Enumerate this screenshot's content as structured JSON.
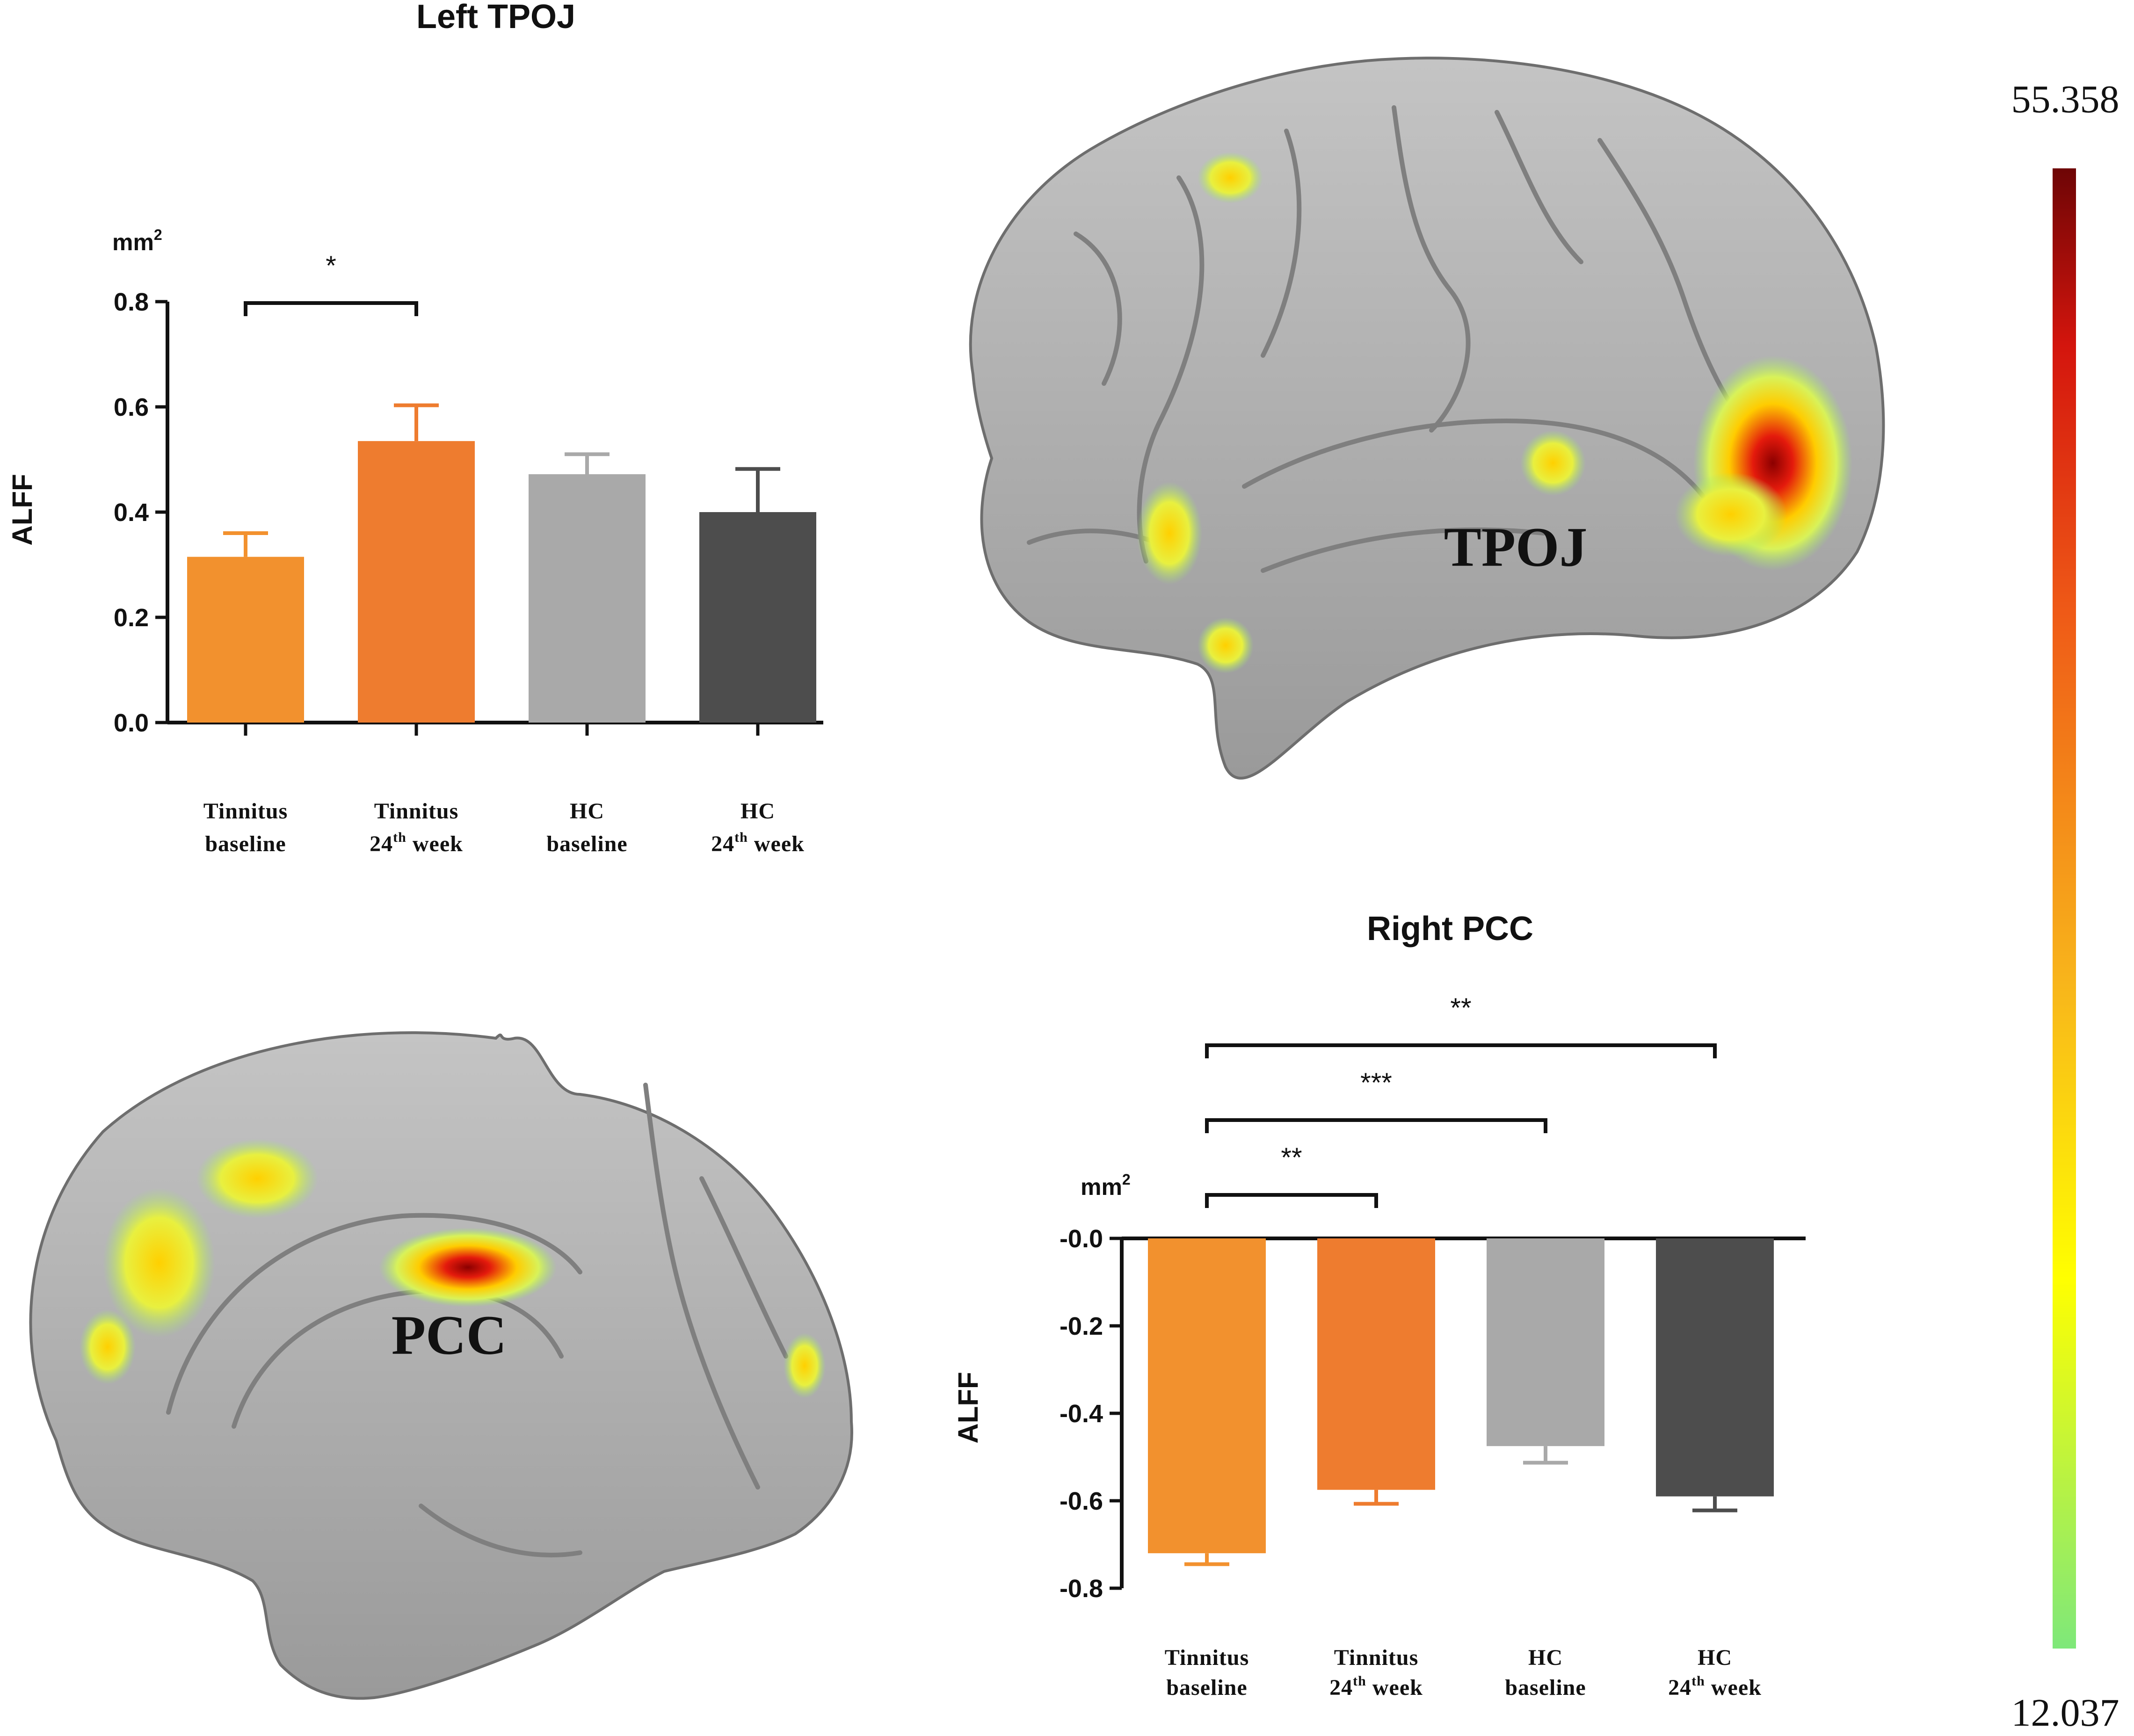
{
  "chart_data": [
    {
      "type": "bar",
      "title": "Left  TPOJ",
      "ylabel": "ALFF",
      "unit": "mm",
      "unit_sup": "2",
      "ylim": [
        0,
        0.8
      ],
      "yticks": [
        "0.0",
        "0.2",
        "0.4",
        "0.6",
        "0.8"
      ],
      "categories": [
        {
          "line1": "Tinnitus",
          "line2": "baseline",
          "sup": "",
          "line2b": ""
        },
        {
          "line1": "Tinnitus",
          "line2": "24",
          "sup": "th",
          "line2b": " week"
        },
        {
          "line1": "HC",
          "line2": "baseline",
          "sup": "",
          "line2b": ""
        },
        {
          "line1": "HC",
          "line2": "24",
          "sup": "th",
          "line2b": " week"
        }
      ],
      "values": [
        0.315,
        0.535,
        0.472,
        0.4
      ],
      "errors": [
        0.045,
        0.068,
        0.038,
        0.082
      ],
      "colors": [
        "#f2912e",
        "#ee7c2f",
        "#a9a9a9",
        "#4d4d4d"
      ],
      "significance": [
        {
          "from": 0,
          "to": 1,
          "label": "*"
        }
      ]
    },
    {
      "type": "bar",
      "title": "Right  PCC",
      "ylabel": "ALFF",
      "unit": "mm",
      "unit_sup": "2",
      "ylim": [
        -0.8,
        0.0
      ],
      "yticks": [
        "-0.0",
        "-0.2",
        "-0.4",
        "-0.6",
        "-0.8"
      ],
      "categories": [
        {
          "line1": "Tinnitus",
          "line2": "baseline",
          "sup": "",
          "line2b": ""
        },
        {
          "line1": "Tinnitus",
          "line2": "24",
          "sup": "th",
          "line2b": " week"
        },
        {
          "line1": "HC",
          "line2": "baseline",
          "sup": "",
          "line2b": ""
        },
        {
          "line1": "HC",
          "line2": "24",
          "sup": "th",
          "line2b": " week"
        }
      ],
      "values": [
        -0.72,
        -0.575,
        -0.475,
        -0.59
      ],
      "errors": [
        0.025,
        0.032,
        0.038,
        0.032
      ],
      "colors": [
        "#f2912e",
        "#ee7c2f",
        "#a9a9a9",
        "#4d4d4d"
      ],
      "significance": [
        {
          "from": 0,
          "to": 1,
          "label": "**"
        },
        {
          "from": 0,
          "to": 2,
          "label": "***"
        },
        {
          "from": 0,
          "to": 3,
          "label": "**"
        }
      ]
    }
  ],
  "brain_labels": {
    "tpoj": "TPOJ",
    "pcc": "PCC"
  },
  "color_scale": {
    "max": "55.358",
    "min": "12.037",
    "colors": [
      "#7ee87a",
      "#c9f03a",
      "#ffff00",
      "#ffd200",
      "#f8a71b",
      "#f47a1c",
      "#ec4a16",
      "#e01a0e",
      "#b30d0a",
      "#7a0606"
    ]
  }
}
